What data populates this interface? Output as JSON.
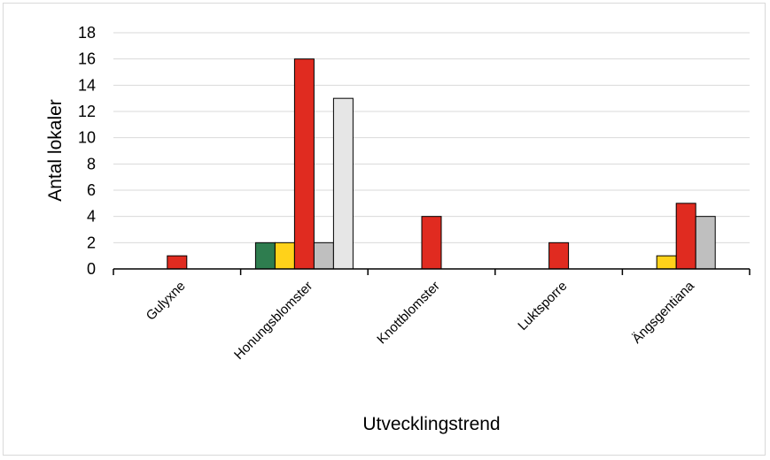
{
  "chart_data": {
    "type": "bar",
    "xlabel": "Utvecklingstrend",
    "ylabel": "Antal lokaler",
    "ylim": [
      0,
      18
    ],
    "yticks": [
      0,
      2,
      4,
      6,
      8,
      10,
      12,
      14,
      16,
      18
    ],
    "grid": true,
    "categories": [
      "Gulyxne",
      "Honungsblomster",
      "Knottblomster",
      "Luktsporre",
      "Ängsgentiana"
    ],
    "series": [
      {
        "color": "#2e7d4f",
        "values": [
          0,
          2,
          0,
          0,
          0
        ]
      },
      {
        "color": "#ffd21a",
        "values": [
          0,
          2,
          0,
          0,
          1
        ]
      },
      {
        "color": "#e02b20",
        "values": [
          1,
          16,
          4,
          2,
          5
        ]
      },
      {
        "color": "#bfbfbf",
        "values": [
          0,
          2,
          0,
          0,
          4
        ]
      },
      {
        "color": "#e6e6e6",
        "values": [
          0,
          13,
          0,
          0,
          0
        ]
      }
    ]
  }
}
